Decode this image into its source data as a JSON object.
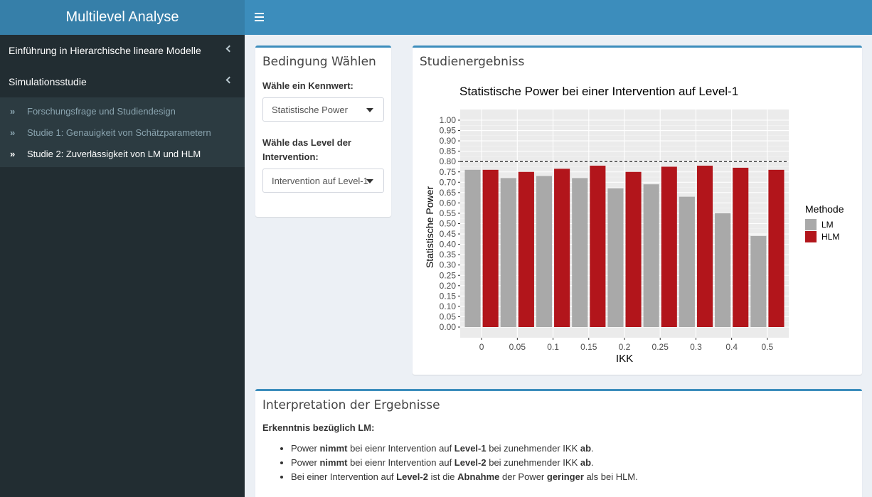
{
  "app": {
    "title": "Multilevel Analyse"
  },
  "sidebar": {
    "items": [
      {
        "label": "Einführung in Hierarchische lineare Modelle"
      },
      {
        "label": "Simulationsstudie"
      }
    ],
    "subitems": [
      {
        "label": "Forschungsfrage und Studiendesign"
      },
      {
        "label": "Studie 1: Genauigkeit von Schätzparametern"
      },
      {
        "label": "Studie 2: Zuverlässigkeit von LM und HLM"
      }
    ]
  },
  "controls": {
    "title": "Bedingung Wählen",
    "kennwert_label": "Wähle ein Kennwert:",
    "kennwert_value": "Statistische Power",
    "level_label": "Wähle das Level der Intervention:",
    "level_value": "Intervention auf Level-1"
  },
  "results": {
    "title": "Studienergebniss"
  },
  "chart_data": {
    "type": "bar",
    "title": "Statistische Power bei einer Intervention auf  Level-1",
    "xlabel": "IKK",
    "ylabel": "Statistische Power",
    "categories": [
      "0",
      "0.05",
      "0.1",
      "0.15",
      "0.2",
      "0.25",
      "0.3",
      "0.4",
      "0.5"
    ],
    "series": [
      {
        "name": "LM",
        "color": "#a9a9a9",
        "values": [
          0.76,
          0.72,
          0.73,
          0.72,
          0.67,
          0.69,
          0.63,
          0.55,
          0.44
        ]
      },
      {
        "name": "HLM",
        "color": "#b2151b",
        "values": [
          0.76,
          0.75,
          0.765,
          0.78,
          0.75,
          0.775,
          0.78,
          0.77,
          0.76
        ]
      }
    ],
    "ylim": [
      0,
      1
    ],
    "yticks": [
      "0.00",
      "0.05",
      "0.10",
      "0.15",
      "0.20",
      "0.25",
      "0.30",
      "0.35",
      "0.40",
      "0.45",
      "0.50",
      "0.55",
      "0.60",
      "0.65",
      "0.70",
      "0.75",
      "0.80",
      "0.85",
      "0.90",
      "0.95",
      "1.00"
    ],
    "reference_line": 0.8,
    "legend_title": "Methode",
    "legend_position": "right",
    "grid": true
  },
  "interpretation": {
    "title": "Interpretation der Ergebnisse",
    "subtitle": "Erkenntnis bezüglich LM:",
    "bullets": [
      [
        "Power ",
        "nimmt",
        " bei eienr Intervention auf ",
        "Level-1",
        " bei zunehmender IKK ",
        "ab",
        "."
      ],
      [
        "Power ",
        "nimmt",
        " bei eienr Intervention auf ",
        "Level-2",
        " bei zunehmender IKK ",
        "ab",
        "."
      ],
      [
        "Bei einer Intervention auf ",
        "Level-2",
        " ist die ",
        "Abnahme",
        " der Power ",
        "geringer",
        " als bei HLM."
      ]
    ]
  }
}
